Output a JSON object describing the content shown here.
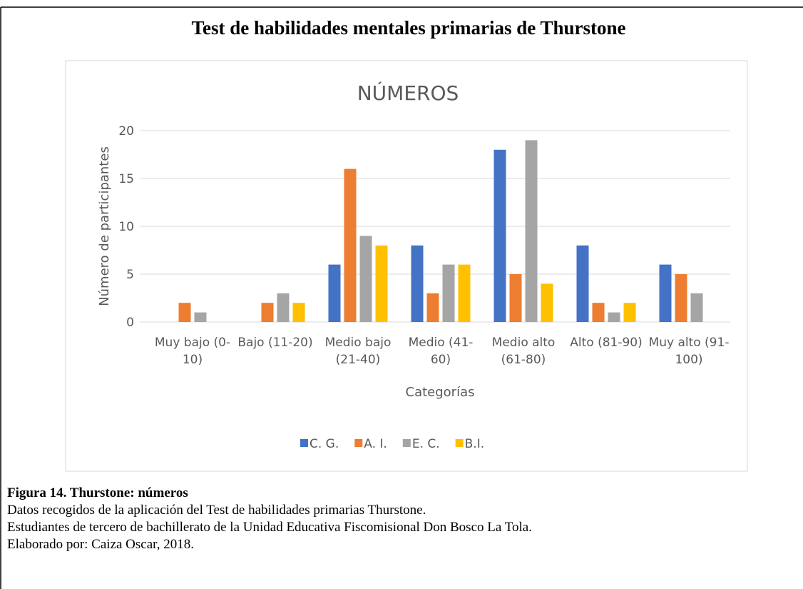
{
  "document": {
    "title": "Test de habilidades mentales primarias de Thurstone",
    "caption_title": "Figura 14. Thurstone: números",
    "caption_lines": [
      "Datos recogidos de la aplicación del Test de habilidades primarias Thurstone.",
      "Estudiantes de tercero de bachillerato de la Unidad Educativa Fiscomisional Don Bosco La Tola.",
      "Elaborado por: Caiza Oscar, 2018."
    ]
  },
  "chart_data": {
    "type": "bar",
    "title": "NÚMEROS",
    "x_label": "Categorías",
    "y_label": "Número de participantes",
    "categories": [
      "Muy bajo (0-10)",
      "Bajo (11-20)",
      "Medio bajo (21-40)",
      "Medio (41-60)",
      "Medio alto (61-80)",
      "Alto (81-90)",
      "Muy alto (91-100)"
    ],
    "series": [
      {
        "name": "C. G.",
        "color": "#4472c4",
        "values": [
          0,
          0,
          6,
          8,
          18,
          8,
          6
        ]
      },
      {
        "name": "A. I.",
        "color": "#ed7d31",
        "values": [
          2,
          2,
          16,
          3,
          5,
          2,
          5
        ]
      },
      {
        "name": "E. C.",
        "color": "#a5a5a5",
        "values": [
          1,
          3,
          9,
          6,
          19,
          1,
          3
        ]
      },
      {
        "name": "B.I.",
        "color": "#ffc000",
        "values": [
          0,
          2,
          8,
          6,
          4,
          2,
          0
        ]
      }
    ],
    "ylim": [
      0,
      20
    ],
    "yticks": [
      0,
      5,
      10,
      15,
      20
    ],
    "grid": true,
    "legend": "bottom"
  }
}
